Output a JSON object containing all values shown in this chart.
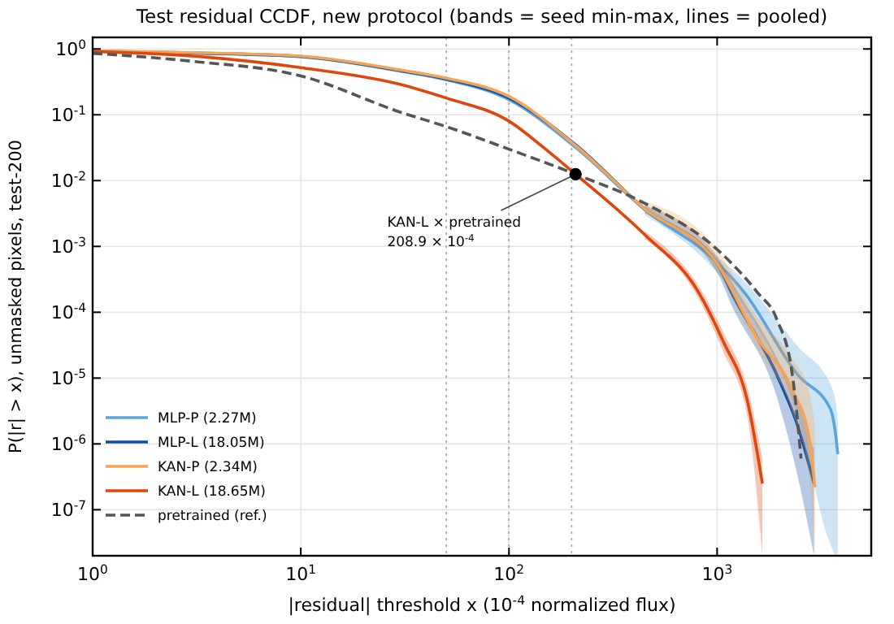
{
  "chart_data": {
    "type": "line",
    "title": "Test residual CCDF, new protocol (bands = seed min-max, lines = pooled)",
    "xlabel": "|residual| threshold x (10$^{-4}$ normalized flux)",
    "ylabel": "P(|r| > x), unmasked pixels, test-200",
    "log": "xy",
    "grid": true,
    "legend": "bottom left",
    "line_style": "solid",
    "marker": "none",
    "xlim": [
      1,
      5500
    ],
    "ylim": [
      2e-08,
      1.5
    ],
    "xticks": [
      {
        "value": 1,
        "label": "10$^{0}$"
      },
      {
        "value": 10,
        "label": "10$^{1}$"
      },
      {
        "value": 100,
        "label": "10$^{2}$"
      },
      {
        "value": 1000,
        "label": "10$^{3}$"
      }
    ],
    "yticks": [
      {
        "value": 1,
        "label": "10$^{0}$"
      },
      {
        "value": 0.1,
        "label": "10$^{-1}$"
      },
      {
        "value": 0.01,
        "label": "10$^{-2}$"
      },
      {
        "value": 0.001,
        "label": "10$^{-3}$"
      },
      {
        "value": 0.0001,
        "label": "10$^{-4}$"
      },
      {
        "value": 1e-05,
        "label": "10$^{-5}$"
      },
      {
        "value": 1e-06,
        "label": "10$^{-6}$"
      },
      {
        "value": 1e-07,
        "label": "10$^{-7}$"
      }
    ],
    "ref_lines": [
      {
        "axis": "x",
        "value": 50,
        "line_style": "dotted",
        "color": "#aaaaaa"
      },
      {
        "axis": "x",
        "value": 100,
        "line_style": "dotted",
        "color": "#aaaaaa"
      },
      {
        "axis": "x",
        "value": 200,
        "line_style": "dotted",
        "color": "#aaaaaa"
      }
    ],
    "series": [
      {
        "name": "MLP-P (2.27M)",
        "color": "#5aa5dc",
        "x": [
          1,
          3,
          10,
          30,
          50,
          100,
          209,
          450,
          1000,
          1350,
          2450,
          3500,
          3730,
          3800
        ],
        "values": [
          0.92,
          0.86,
          0.76,
          0.46,
          0.34,
          0.17,
          0.032,
          0.0036,
          0.00057,
          0.0002,
          1.1e-05,
          3.4e-06,
          1.2e-06,
          7e-07
        ],
        "lower": [
          null,
          null,
          null,
          null,
          null,
          null,
          null,
          0.003,
          0.0004,
          0.00012,
          2.5e-06,
          3e-08,
          2e-08,
          2e-08
        ],
        "upper": [
          null,
          null,
          null,
          null,
          null,
          null,
          null,
          0.0042,
          0.0007,
          0.0003,
          3e-05,
          8e-06,
          4e-06,
          2e-06
        ]
      },
      {
        "name": "MLP-L (18.05M)",
        "color": "#0d4fa8",
        "x": [
          1,
          3,
          10,
          30,
          50,
          100,
          209,
          450,
          1000,
          1170,
          1940,
          2450,
          2920
        ],
        "values": [
          0.93,
          0.87,
          0.77,
          0.47,
          0.35,
          0.18,
          0.035,
          0.0037,
          0.00055,
          0.0002,
          1.1e-05,
          1.8e-06,
          2.5e-07
        ],
        "lower": [
          null,
          null,
          null,
          null,
          null,
          null,
          null,
          0.0032,
          0.0004,
          0.00013,
          5e-06,
          3e-07,
          2e-08
        ],
        "upper": [
          null,
          null,
          null,
          null,
          null,
          null,
          null,
          0.0042,
          0.0007,
          0.0003,
          2e-05,
          4e-06,
          8e-07
        ]
      },
      {
        "name": "KAN-P (2.34M)",
        "color": "#f5a455",
        "x": [
          1,
          3,
          10,
          30,
          50,
          100,
          209,
          450,
          1000,
          1540,
          2300,
          2770,
          2950
        ],
        "values": [
          0.94,
          0.88,
          0.78,
          0.48,
          0.36,
          0.19,
          0.034,
          0.0037,
          0.00055,
          4.3e-05,
          6.5e-06,
          1.2e-06,
          2.2e-07
        ],
        "lower": [
          null,
          null,
          null,
          null,
          null,
          null,
          null,
          0.0032,
          0.00042,
          3e-05,
          3e-06,
          3e-07,
          2e-08
        ],
        "upper": [
          null,
          null,
          null,
          null,
          null,
          null,
          null,
          0.0048,
          0.0009,
          9e-05,
          2e-05,
          6e-06,
          2e-06
        ]
      },
      {
        "name": "KAN-L (18.65M)",
        "color": "#e0460c",
        "x": [
          1,
          3,
          10,
          30,
          50,
          100,
          150,
          208.9,
          450,
          815,
          1070,
          1400,
          1650
        ],
        "values": [
          0.92,
          0.78,
          0.52,
          0.29,
          0.18,
          0.08,
          0.03,
          0.0125,
          0.0015,
          0.0002,
          3.6e-05,
          4.4e-06,
          2.5e-07
        ],
        "lower": [
          null,
          null,
          null,
          null,
          null,
          null,
          null,
          null,
          0.0013,
          0.00016,
          2.5e-05,
          2.5e-06,
          2e-08
        ],
        "upper": [
          null,
          null,
          null,
          null,
          null,
          null,
          null,
          null,
          0.0017,
          0.00025,
          5e-05,
          7e-06,
          6e-07
        ]
      },
      {
        "name": "pretrained (ref.)",
        "color": "#555555",
        "line_style": "dashed",
        "x": [
          1,
          3,
          10,
          30,
          50,
          100,
          208.9,
          450,
          1000,
          1560,
          1940,
          2300,
          2530
        ],
        "values": [
          0.86,
          0.65,
          0.39,
          0.11,
          0.066,
          0.03,
          0.0125,
          0.0045,
          0.0009,
          0.0002,
          7.7e-05,
          1.1e-05,
          6e-07
        ]
      }
    ],
    "annotations": [
      {
        "text": "KAN-L × pretrained\n208.9 × 10$^{-4}$",
        "x": 208.9,
        "y": 0.0125
      }
    ]
  }
}
